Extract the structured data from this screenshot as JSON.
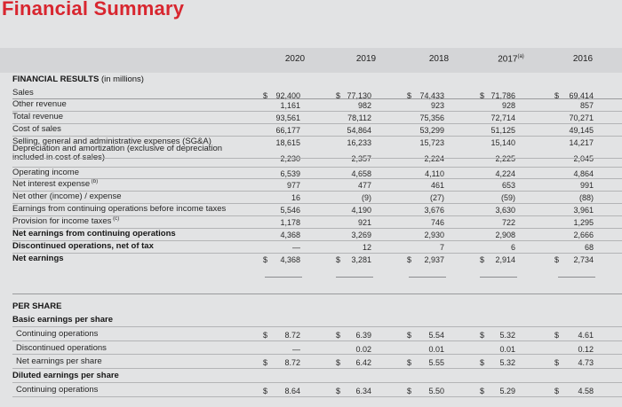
{
  "title": "Financial Summary",
  "years": [
    "2020",
    "2019",
    "2018",
    "2017",
    "2016"
  ],
  "year_notes": {
    "2017": "(a)"
  },
  "sections": {
    "financial": {
      "title": "FINANCIAL RESULTS",
      "subtitle": "(in millions)"
    },
    "per_share": {
      "title": "PER SHARE"
    }
  },
  "rows": [
    {
      "label": "Sales",
      "values": [
        "92,400",
        "77,130",
        "74,433",
        "71,786",
        "69,414"
      ],
      "currency": true
    },
    {
      "label": "Other revenue",
      "values": [
        "1,161",
        "982",
        "923",
        "928",
        "857"
      ]
    },
    {
      "label": "Total revenue",
      "values": [
        "93,561",
        "78,112",
        "75,356",
        "72,714",
        "70,271"
      ]
    },
    {
      "label": "Cost of sales",
      "values": [
        "66,177",
        "54,864",
        "53,299",
        "51,125",
        "49,145"
      ]
    },
    {
      "label": "Selling, general and administrative expenses (SG&A)",
      "values": [
        "18,615",
        "16,233",
        "15,723",
        "15,140",
        "14,217"
      ]
    },
    {
      "label": "Depreciation and amortization (exclusive of depreciation",
      "label2": "included in cost of sales)",
      "values": [
        "2,230",
        "2,357",
        "2,224",
        "2,225",
        "2,045"
      ]
    },
    {
      "label": "Operating income",
      "values": [
        "6,539",
        "4,658",
        "4,110",
        "4,224",
        "4,864"
      ]
    },
    {
      "label": "Net interest expense",
      "note": "(b)",
      "values": [
        "977",
        "477",
        "461",
        "653",
        "991"
      ]
    },
    {
      "label": "Net other (income) / expense",
      "values": [
        "16",
        "(9)",
        "(27)",
        "(59)",
        "(88)"
      ]
    },
    {
      "label": "Earnings from continuing operations before income taxes",
      "values": [
        "5,546",
        "4,190",
        "3,676",
        "3,630",
        "3,961"
      ]
    },
    {
      "label": "Provision for income taxes",
      "note": "(c)",
      "values": [
        "1,178",
        "921",
        "746",
        "722",
        "1,295"
      ]
    },
    {
      "label": "Net earnings from continuing operations",
      "bold": true,
      "values": [
        "4,368",
        "3,269",
        "2,930",
        "2,908",
        "2,666"
      ]
    },
    {
      "label": "Discontinued operations, net of tax",
      "bold": true,
      "values": [
        "—",
        "12",
        "7",
        "6",
        "68"
      ]
    },
    {
      "label": "Net earnings",
      "bold": true,
      "values": [
        "4,368",
        "3,281",
        "2,937",
        "2,914",
        "2,734"
      ],
      "currency": true
    }
  ],
  "per_share_rows": [
    {
      "label": "Basic earnings per share",
      "bold": true,
      "values": [
        "",
        "",
        "",
        "",
        ""
      ]
    },
    {
      "label": "Continuing operations",
      "values": [
        "8.72",
        "6.39",
        "5.54",
        "5.32",
        "4.61"
      ],
      "currency": true
    },
    {
      "label": "Discontinued operations",
      "values": [
        "—",
        "0.02",
        "0.01",
        "0.01",
        "0.12"
      ]
    },
    {
      "label": "Net earnings per share",
      "values": [
        "8.72",
        "6.42",
        "5.55",
        "5.32",
        "4.73"
      ],
      "currency": true
    },
    {
      "label": "Diluted earnings per share",
      "bold": true,
      "values": [
        "",
        "",
        "",
        "",
        ""
      ]
    },
    {
      "label": "Continuing operations",
      "values": [
        "8.64",
        "6.34",
        "5.50",
        "5.29",
        "4.58"
      ],
      "currency": true
    }
  ],
  "currency_symbol": "$",
  "colors": {
    "title": "#d8262f",
    "background": "#e2e3e4",
    "header_band": "#d4d5d7"
  }
}
